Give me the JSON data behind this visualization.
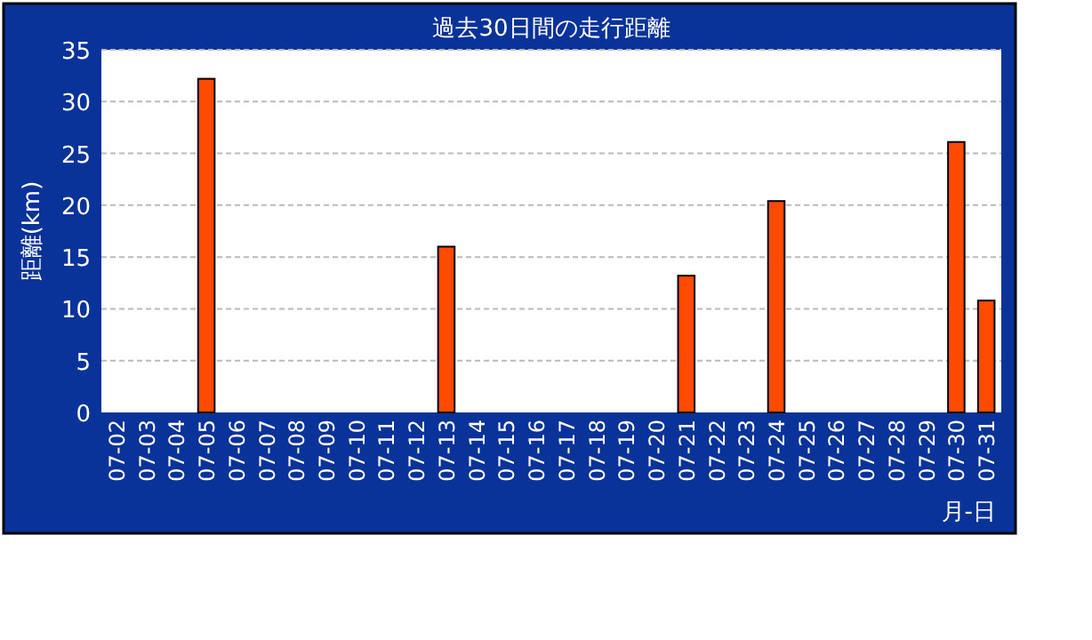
{
  "chart_data": {
    "type": "bar",
    "title": "過去30日間の走行距離",
    "xlabel": "月-日",
    "ylabel": "距離(km)",
    "categories": [
      "07-02",
      "07-03",
      "07-04",
      "07-05",
      "07-06",
      "07-07",
      "07-08",
      "07-09",
      "07-10",
      "07-11",
      "07-12",
      "07-13",
      "07-14",
      "07-15",
      "07-16",
      "07-17",
      "07-18",
      "07-19",
      "07-20",
      "07-21",
      "07-22",
      "07-23",
      "07-24",
      "07-25",
      "07-26",
      "07-27",
      "07-28",
      "07-29",
      "07-30",
      "07-31"
    ],
    "values": [
      null,
      null,
      null,
      32.2,
      null,
      null,
      null,
      null,
      null,
      null,
      null,
      16,
      null,
      null,
      null,
      null,
      null,
      null,
      null,
      13.2,
      null,
      null,
      20.4,
      null,
      null,
      null,
      null,
      null,
      26.1,
      10.8
    ],
    "color": "#ff4a00",
    "ylim": [
      0,
      35
    ],
    "yticks": [
      0,
      5,
      10,
      15,
      20,
      25,
      30,
      35
    ],
    "grid": "y"
  }
}
